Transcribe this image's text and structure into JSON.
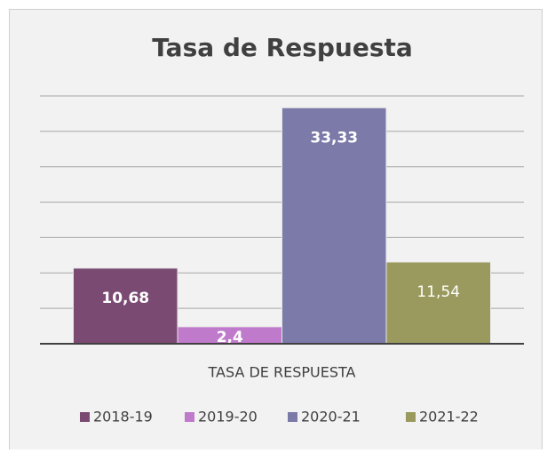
{
  "chart_data": {
    "type": "bar",
    "title": "Tasa de Respuesta",
    "categories": [
      "TASA DE RESPUESTA"
    ],
    "series": [
      {
        "name": "2018-19",
        "color": "#7b4a73",
        "values": [
          10.68
        ],
        "value_labels": [
          "10,68"
        ]
      },
      {
        "name": "2019-20",
        "color": "#c07acb",
        "values": [
          2.4
        ],
        "value_labels": [
          "2,4"
        ]
      },
      {
        "name": "2020-21",
        "color": "#7b7aa8",
        "values": [
          33.33
        ],
        "value_labels": [
          "33,33"
        ]
      },
      {
        "name": "2021-22",
        "color": "#9a9a5e",
        "values": [
          11.54
        ],
        "value_labels": [
          "11,54"
        ]
      }
    ],
    "ylim": [
      0,
      35
    ],
    "yticks": [
      0,
      5,
      10,
      15,
      20,
      25,
      30,
      35
    ],
    "grid": true,
    "legend": "bottom"
  }
}
